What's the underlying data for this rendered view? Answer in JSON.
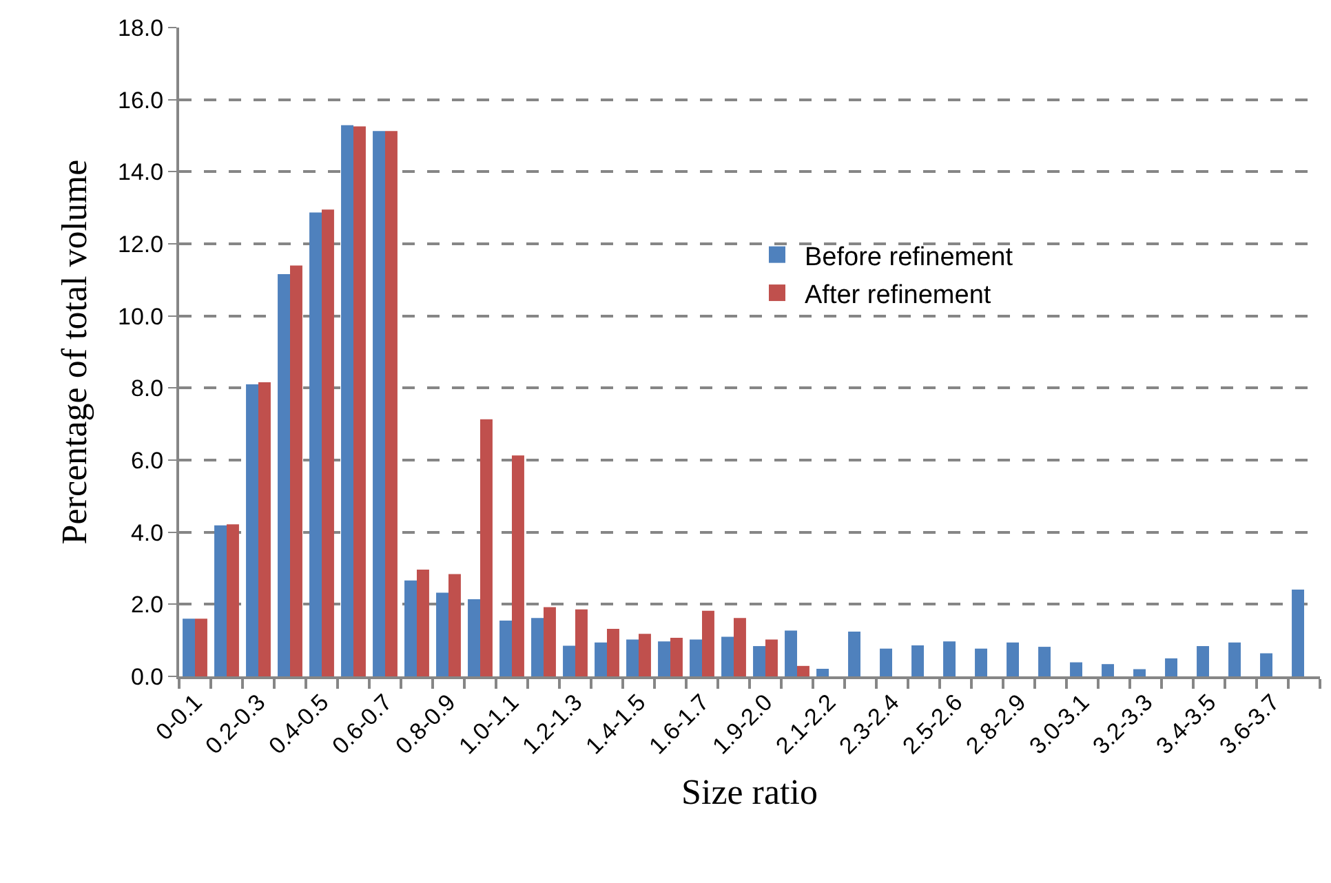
{
  "chart_data": {
    "type": "bar",
    "xlabel": "Size ratio",
    "ylabel": "Percentage of total volume",
    "categories": [
      "0-0.1",
      null,
      "0.2-0.3",
      null,
      "0.4-0.5",
      null,
      "0.6-0.7",
      null,
      "0.8-0.9",
      null,
      "1.0-1.1",
      null,
      "1.2-1.3",
      null,
      "1.4-1.5",
      null,
      "1.6-1.7",
      null,
      "1.9-2.0",
      null,
      "2.1-2.2",
      null,
      "2.3-2.4",
      null,
      "2.5-2.6",
      null,
      "2.8-2.9",
      null,
      "3.0-3.1",
      null,
      "3.2-3.3",
      null,
      "3.4-3.5",
      null,
      "3.6-3.7",
      null
    ],
    "series": [
      {
        "name": "Before refinement",
        "color": "#4f81bd",
        "values": [
          1.6,
          4.19,
          8.1,
          11.16,
          12.87,
          15.29,
          15.13,
          2.66,
          2.32,
          2.14,
          1.55,
          1.62,
          0.85,
          0.94,
          1.02,
          0.97,
          1.02,
          1.1,
          0.84,
          1.27,
          0.21,
          1.24,
          0.77,
          0.86,
          0.97,
          0.77,
          0.94,
          0.82,
          0.39,
          0.34,
          0.2,
          0.5,
          0.84,
          0.94,
          0.64,
          2.41
        ]
      },
      {
        "name": "After refinement",
        "color": "#c0504d",
        "values": [
          1.6,
          4.22,
          8.16,
          11.4,
          12.95,
          15.26,
          15.13,
          2.96,
          2.84,
          7.13,
          6.13,
          1.92,
          1.86,
          1.32,
          1.18,
          1.07,
          1.82,
          1.62,
          1.02,
          0.29,
          null,
          null,
          null,
          null,
          null,
          null,
          null,
          null,
          null,
          null,
          null,
          null,
          null,
          null,
          null,
          null
        ]
      }
    ],
    "ylim": [
      0,
      18
    ],
    "yticks": [
      {
        "value": 0,
        "label": "0.0"
      },
      {
        "value": 2,
        "label": "2.0"
      },
      {
        "value": 4,
        "label": "4.0"
      },
      {
        "value": 6,
        "label": "6.0"
      },
      {
        "value": 8,
        "label": "8.0"
      },
      {
        "value": 10,
        "label": "10.0"
      },
      {
        "value": 12,
        "label": "12.0"
      },
      {
        "value": 14,
        "label": "14.0"
      },
      {
        "value": 16,
        "label": "16.0"
      },
      {
        "value": 18,
        "label": "18.0"
      }
    ],
    "grid": "y",
    "legend": "right"
  }
}
